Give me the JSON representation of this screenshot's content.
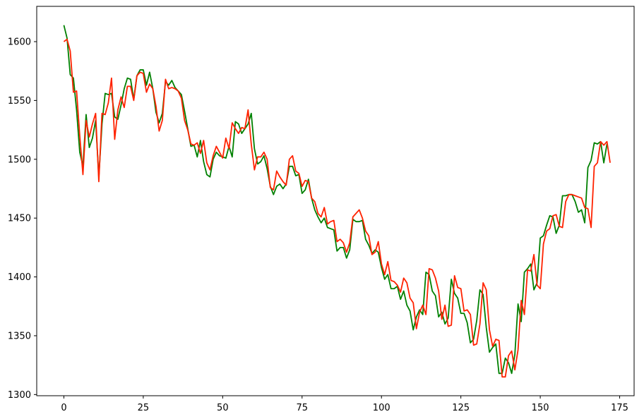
{
  "chart_data": {
    "type": "line",
    "title": "",
    "xlabel": "",
    "ylabel": "",
    "xlim": [
      -8.55,
      179.55
    ],
    "ylim": [
      1299,
      1630
    ],
    "grid": false,
    "x_ticks": [
      0,
      25,
      50,
      75,
      100,
      125,
      150,
      175
    ],
    "y_ticks": [
      1300,
      1350,
      1400,
      1450,
      1500,
      1550,
      1600
    ],
    "series": [
      {
        "color": "#008000",
        "values": [
          1614,
          1603,
          1572,
          1569,
          1542,
          1506,
          1494,
          1538,
          1510,
          1518,
          1533,
          1485,
          1530,
          1556,
          1555,
          1556,
          1536,
          1534,
          1546,
          1560,
          1569,
          1568,
          1551,
          1571,
          1576,
          1576,
          1563,
          1574,
          1560,
          1540,
          1531,
          1539,
          1566,
          1563,
          1567,
          1561,
          1558,
          1555,
          1541,
          1526,
          1511,
          1512,
          1502,
          1516,
          1498,
          1487,
          1485,
          1500,
          1506,
          1503,
          1502,
          1501,
          1511,
          1502,
          1532,
          1530,
          1522,
          1526,
          1530,
          1539,
          1509,
          1496,
          1498,
          1503,
          1492,
          1477,
          1470,
          1477,
          1479,
          1475,
          1479,
          1494,
          1494,
          1486,
          1487,
          1471,
          1474,
          1483,
          1467,
          1457,
          1451,
          1446,
          1450,
          1442,
          1441,
          1440,
          1422,
          1425,
          1425,
          1416,
          1423,
          1449,
          1447,
          1447,
          1448,
          1432,
          1427,
          1420,
          1423,
          1421,
          1408,
          1398,
          1402,
          1390,
          1390,
          1392,
          1381,
          1388,
          1376,
          1371,
          1355,
          1366,
          1372,
          1368,
          1404,
          1402,
          1388,
          1384,
          1366,
          1370,
          1360,
          1365,
          1398,
          1386,
          1382,
          1369,
          1369,
          1361,
          1344,
          1347,
          1363,
          1389,
          1385,
          1357,
          1336,
          1340,
          1343,
          1318,
          1318,
          1331,
          1327,
          1318,
          1334,
          1377,
          1362,
          1404,
          1407,
          1411,
          1389,
          1395,
          1433,
          1435,
          1444,
          1452,
          1451,
          1437,
          1444,
          1469,
          1469,
          1470,
          1470,
          1464,
          1455,
          1457,
          1446,
          1493,
          1499,
          1514,
          1513,
          1515,
          1497,
          1513
        ]
      },
      {
        "color": "#ff2200",
        "values": [
          1600,
          1602,
          1592,
          1557,
          1558,
          1520,
          1487,
          1533,
          1519,
          1530,
          1539,
          1481,
          1539,
          1538,
          1548,
          1569,
          1517,
          1542,
          1553,
          1544,
          1562,
          1562,
          1550,
          1571,
          1574,
          1573,
          1557,
          1564,
          1560,
          1545,
          1524,
          1533,
          1568,
          1560,
          1561,
          1560,
          1558,
          1552,
          1533,
          1525,
          1513,
          1512,
          1514,
          1505,
          1516,
          1497,
          1491,
          1503,
          1511,
          1506,
          1501,
          1518,
          1509,
          1531,
          1526,
          1522,
          1527,
          1526,
          1542,
          1513,
          1491,
          1502,
          1502,
          1506,
          1500,
          1476,
          1474,
          1490,
          1485,
          1481,
          1478,
          1500,
          1503,
          1490,
          1488,
          1477,
          1482,
          1481,
          1467,
          1464,
          1454,
          1451,
          1459,
          1445,
          1447,
          1448,
          1430,
          1432,
          1429,
          1421,
          1429,
          1451,
          1454,
          1457,
          1450,
          1439,
          1435,
          1419,
          1421,
          1430,
          1411,
          1402,
          1413,
          1397,
          1396,
          1393,
          1387,
          1399,
          1395,
          1382,
          1378,
          1356,
          1370,
          1376,
          1368,
          1407,
          1406,
          1399,
          1388,
          1364,
          1376,
          1358,
          1359,
          1401,
          1391,
          1390,
          1371,
          1372,
          1368,
          1342,
          1343,
          1360,
          1395,
          1389,
          1355,
          1341,
          1347,
          1346,
          1315,
          1315,
          1333,
          1337,
          1321,
          1338,
          1380,
          1368,
          1406,
          1405,
          1419,
          1393,
          1390,
          1428,
          1439,
          1441,
          1452,
          1453,
          1443,
          1442,
          1464,
          1470,
          1470,
          1469,
          1468,
          1467,
          1459,
          1458,
          1442,
          1494,
          1497,
          1515,
          1512,
          1515,
          1497
        ]
      }
    ]
  }
}
